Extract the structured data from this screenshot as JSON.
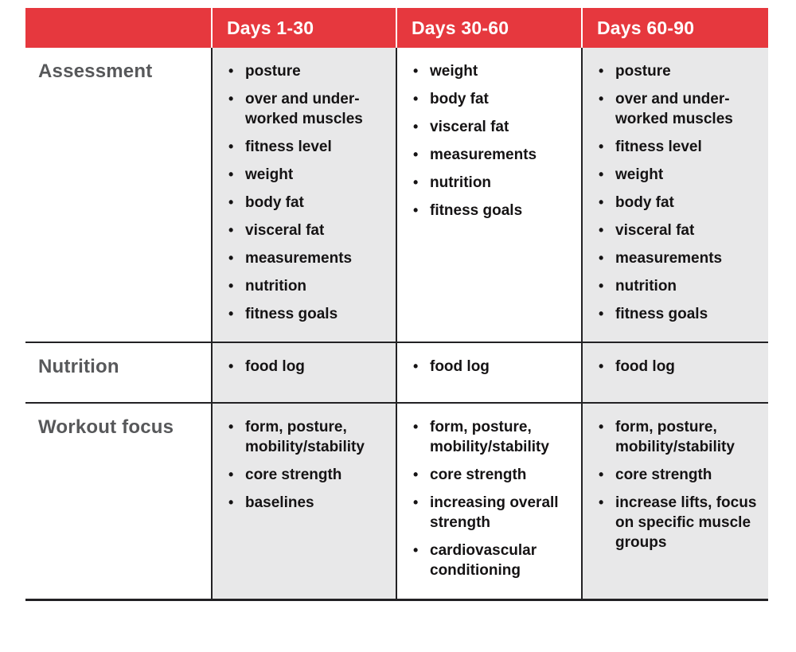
{
  "theme": {
    "header_bg": "#e6383e",
    "header_text_color": "#ffffff",
    "shaded_cell_bg": "#e8e8e9",
    "plain_cell_bg": "#ffffff",
    "row_label_color": "#57585a",
    "body_text_color": "#151314",
    "border_color": "#222124"
  },
  "table": {
    "column_headers": [
      "",
      "Days 1-30",
      "Days 30-60",
      "Days 60-90"
    ],
    "rows": [
      {
        "label": "Assessment",
        "cells": [
          [
            "posture",
            "over and under-worked muscles",
            "fitness level",
            "weight",
            "body fat",
            "visceral fat",
            "measurements",
            "nutrition",
            "fitness goals"
          ],
          [
            "weight",
            "body fat",
            "visceral fat",
            "measurements",
            "nutrition",
            "fitness goals"
          ],
          [
            "posture",
            "over and under-worked muscles",
            "fitness level",
            "weight",
            "body fat",
            "visceral fat",
            "measurements",
            "nutrition",
            "fitness goals"
          ]
        ]
      },
      {
        "label": "Nutrition",
        "cells": [
          [
            "food log"
          ],
          [
            "food log"
          ],
          [
            "food log"
          ]
        ]
      },
      {
        "label": "Workout focus",
        "cells": [
          [
            "form, posture, mobility/stability",
            "core strength",
            "baselines"
          ],
          [
            "form, posture, mobility/stability",
            "core strength",
            "increasing overall strength",
            "cardiovascular conditioning"
          ],
          [
            "form, posture, mobility/stability",
            "core strength",
            "increase lifts, focus on specific muscle groups"
          ]
        ]
      }
    ]
  }
}
